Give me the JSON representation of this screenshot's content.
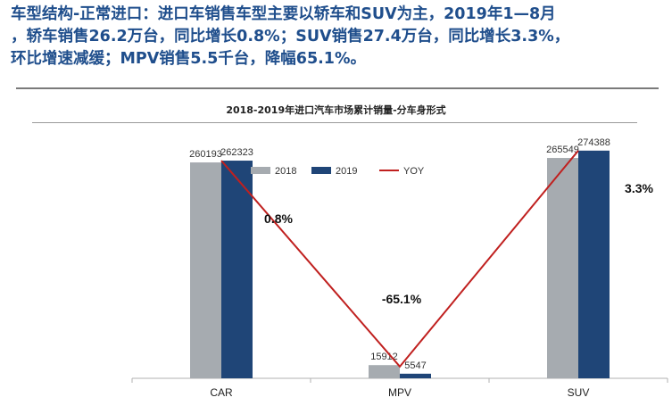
{
  "headline": {
    "line1": "车型结构-正常进口：进口车销售车型主要以轿车和SUV为主，2019年1—8月",
    "line2": "，轿车销售26.2万台，同比增长0.8%；SUV销售27.4万台，同比增长3.3%，",
    "line3": "环比增速减缓；MPV销售5.5千台，降幅65.1%。"
  },
  "chart_data": {
    "type": "bar",
    "title": "2018-2019年进口汽车市场累计销量-分车身形式",
    "categories": [
      "CAR",
      "MPV",
      "SUV"
    ],
    "series": [
      {
        "name": "2018",
        "values": [
          260193,
          15912,
          265549
        ],
        "labels": [
          "260193",
          "15912",
          "265549"
        ],
        "color": "#a6abb0"
      },
      {
        "name": "2019",
        "values": [
          262323,
          5547,
          274388
        ],
        "labels": [
          "262323",
          "5547",
          "274388"
        ],
        "color": "#1f4577"
      }
    ],
    "line_series": {
      "name": "YOY",
      "values": [
        0.8,
        -65.1,
        3.3
      ],
      "labels": [
        "0.8%",
        "-65.1%",
        "3.3%"
      ],
      "color": "#c0201f"
    },
    "ylim": [
      0,
      300000
    ],
    "legend_position": "top",
    "grid": false
  }
}
